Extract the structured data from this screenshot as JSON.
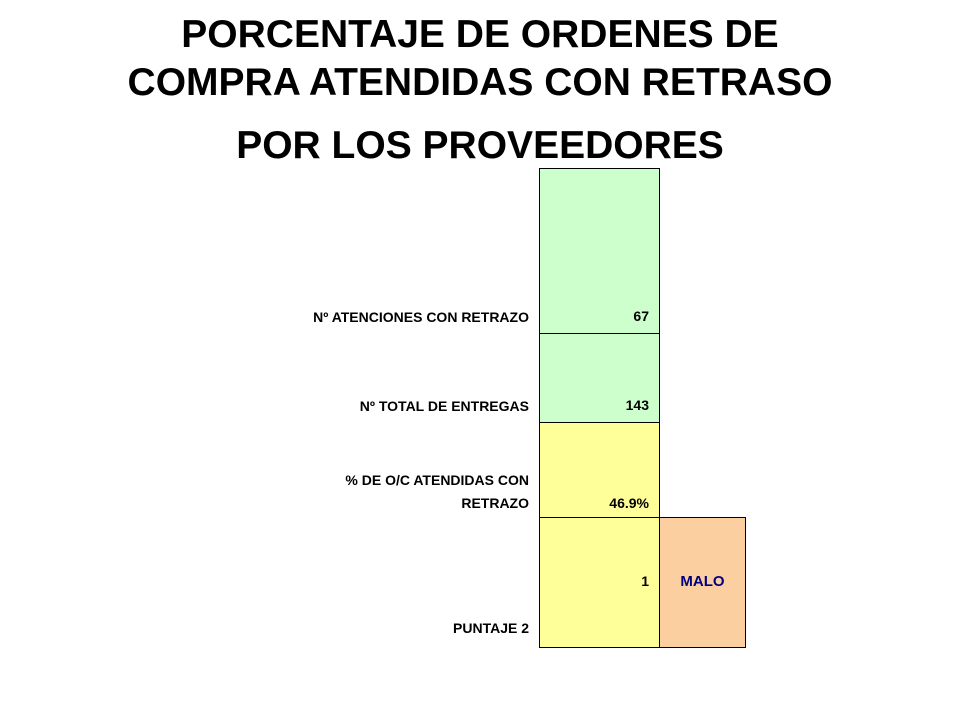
{
  "title": {
    "line1": "PORCENTAJE DE ORDENES DE",
    "line2": "COMPRA ATENDIDAS CON RETRASO",
    "line3": "POR LOS PROVEEDORES"
  },
  "rows": [
    {
      "label": "Nº ATENCIONES CON RETRAZO",
      "value": "67"
    },
    {
      "label": "Nº TOTAL DE ENTREGAS",
      "value": "143"
    },
    {
      "label_line1": "% DE O/C ATENDIDAS CON",
      "label_line2": "RETRAZO",
      "value": "46.9%"
    },
    {
      "label": "PUNTAJE 2",
      "value": "1",
      "rating": "MALO"
    }
  ],
  "colors": {
    "green_cell": "#ccffcc",
    "yellow_cell": "#ffff99",
    "orange_cell": "#fbcf9f",
    "rating_text": "#000080"
  }
}
